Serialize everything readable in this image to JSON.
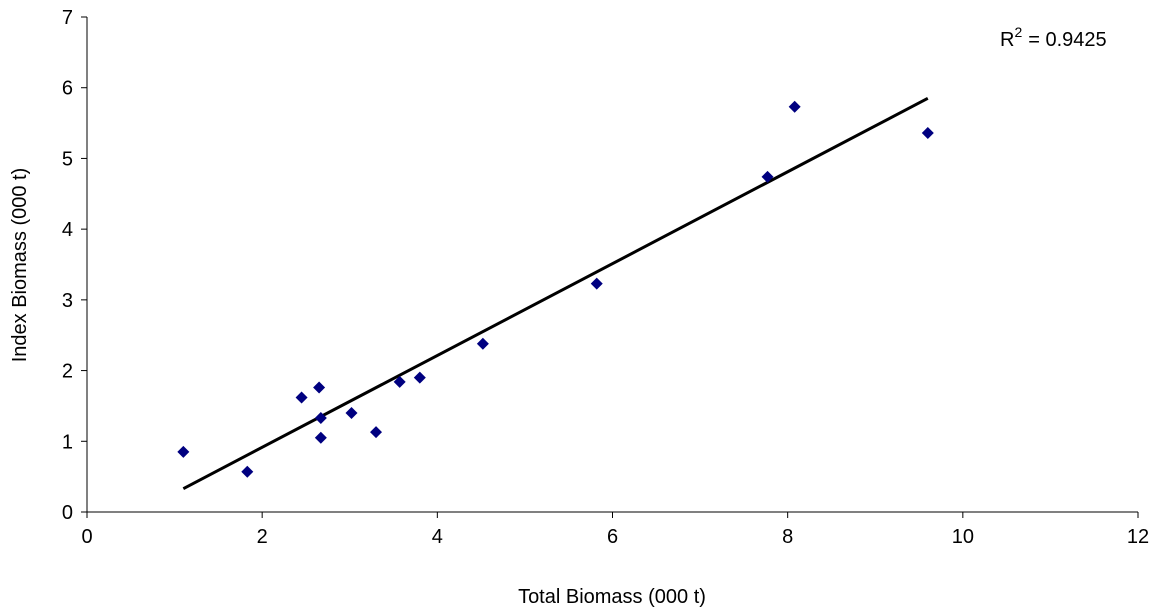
{
  "chart_data": {
    "type": "scatter",
    "x_label": "Total Biomass (000 t)",
    "y_label": "Index Biomass (000 t)",
    "x": [
      1.1,
      1.83,
      2.45,
      2.65,
      2.67,
      2.67,
      3.02,
      3.3,
      3.57,
      3.8,
      4.52,
      5.82,
      7.77,
      8.08,
      9.6
    ],
    "values": [
      0.85,
      0.57,
      1.62,
      1.76,
      1.33,
      1.05,
      1.4,
      1.13,
      1.84,
      1.9,
      2.38,
      3.23,
      4.74,
      5.73,
      5.36
    ],
    "color": "#000080",
    "trendline": {
      "x": [
        1.1,
        9.6
      ],
      "values": [
        0.33,
        5.85
      ],
      "color": "#000000"
    },
    "annotation": {
      "base": "R",
      "sup": "2",
      "rest": "= 0.9425"
    },
    "xlim": [
      0,
      12
    ],
    "ylim": [
      0,
      7
    ],
    "xticks": [
      0,
      2,
      4,
      6,
      8,
      10,
      12
    ],
    "yticks": [
      0,
      1,
      2,
      3,
      4,
      5,
      6,
      7
    ],
    "grid": false
  }
}
